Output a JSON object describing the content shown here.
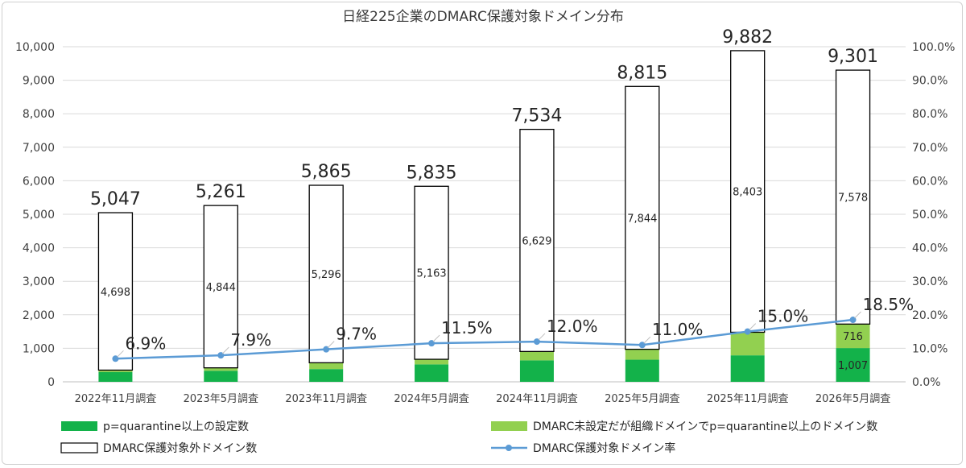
{
  "chart_data": {
    "type": "bar",
    "title": "日経225企業のDMARC保護対象ドメイン分布",
    "categories": [
      "2022年11月調査",
      "2023年5月調査",
      "2023年11月調査",
      "2024年5月調査",
      "2024年11月調査",
      "2025年5月調査",
      "2025年11月調査",
      "2026年5月調査"
    ],
    "series": [
      {
        "name": "p=quarantine以上の設定数",
        "color": "#13b24a",
        "values": [
          290,
          330,
          380,
          520,
          640,
          660,
          790,
          1007
        ]
      },
      {
        "name": "DMARC未設定だが組織ドメインでp=quarantine以上のドメイン数",
        "color": "#92d050",
        "values": [
          59,
          87,
          189,
          152,
          265,
          311,
          689,
          716
        ]
      },
      {
        "name": "DMARC保護対象外ドメイン数",
        "color": "#ffffff",
        "values": [
          4698,
          4844,
          5296,
          5163,
          6629,
          7844,
          8403,
          7578
        ]
      },
      {
        "name": "DMARC保護対象ドメイン率",
        "color": "#5b9bd5",
        "axis": "right",
        "values": [
          6.9,
          7.9,
          9.7,
          11.5,
          12.0,
          11.0,
          15.0,
          18.5
        ]
      }
    ],
    "segment_labels": {
      "green": [
        "",
        "",
        "",
        "",
        "",
        "",
        "",
        "1,007"
      ],
      "lightgreen": [
        "",
        "",
        "",
        "",
        "",
        "",
        "",
        "716"
      ],
      "white": [
        "4,698",
        "4,844",
        "5,296",
        "5,163",
        "6,629",
        "7,844",
        "8,403",
        "7,578"
      ]
    },
    "totals": [
      5047,
      5261,
      5865,
      5835,
      7534,
      8815,
      9882,
      9301
    ],
    "total_labels": [
      "5,047",
      "5,261",
      "5,865",
      "5,835",
      "7,534",
      "8,815",
      "9,882",
      "9,301"
    ],
    "rate_labels": [
      "6.9%",
      "7.9%",
      "9.7%",
      "11.5%",
      "12.0%",
      "11.0%",
      "15.0%",
      "18.5%"
    ],
    "ylim": [
      0,
      10000
    ],
    "y2lim": [
      0,
      100
    ],
    "y_ticks": [
      "0",
      "1,000",
      "2,000",
      "3,000",
      "4,000",
      "5,000",
      "6,000",
      "7,000",
      "8,000",
      "9,000",
      "10,000"
    ],
    "y2_ticks": [
      "0.0%",
      "10.0%",
      "20.0%",
      "30.0%",
      "40.0%",
      "50.0%",
      "60.0%",
      "70.0%",
      "80.0%",
      "90.0%",
      "100.0%"
    ],
    "grid": true,
    "legend": "bottom"
  }
}
